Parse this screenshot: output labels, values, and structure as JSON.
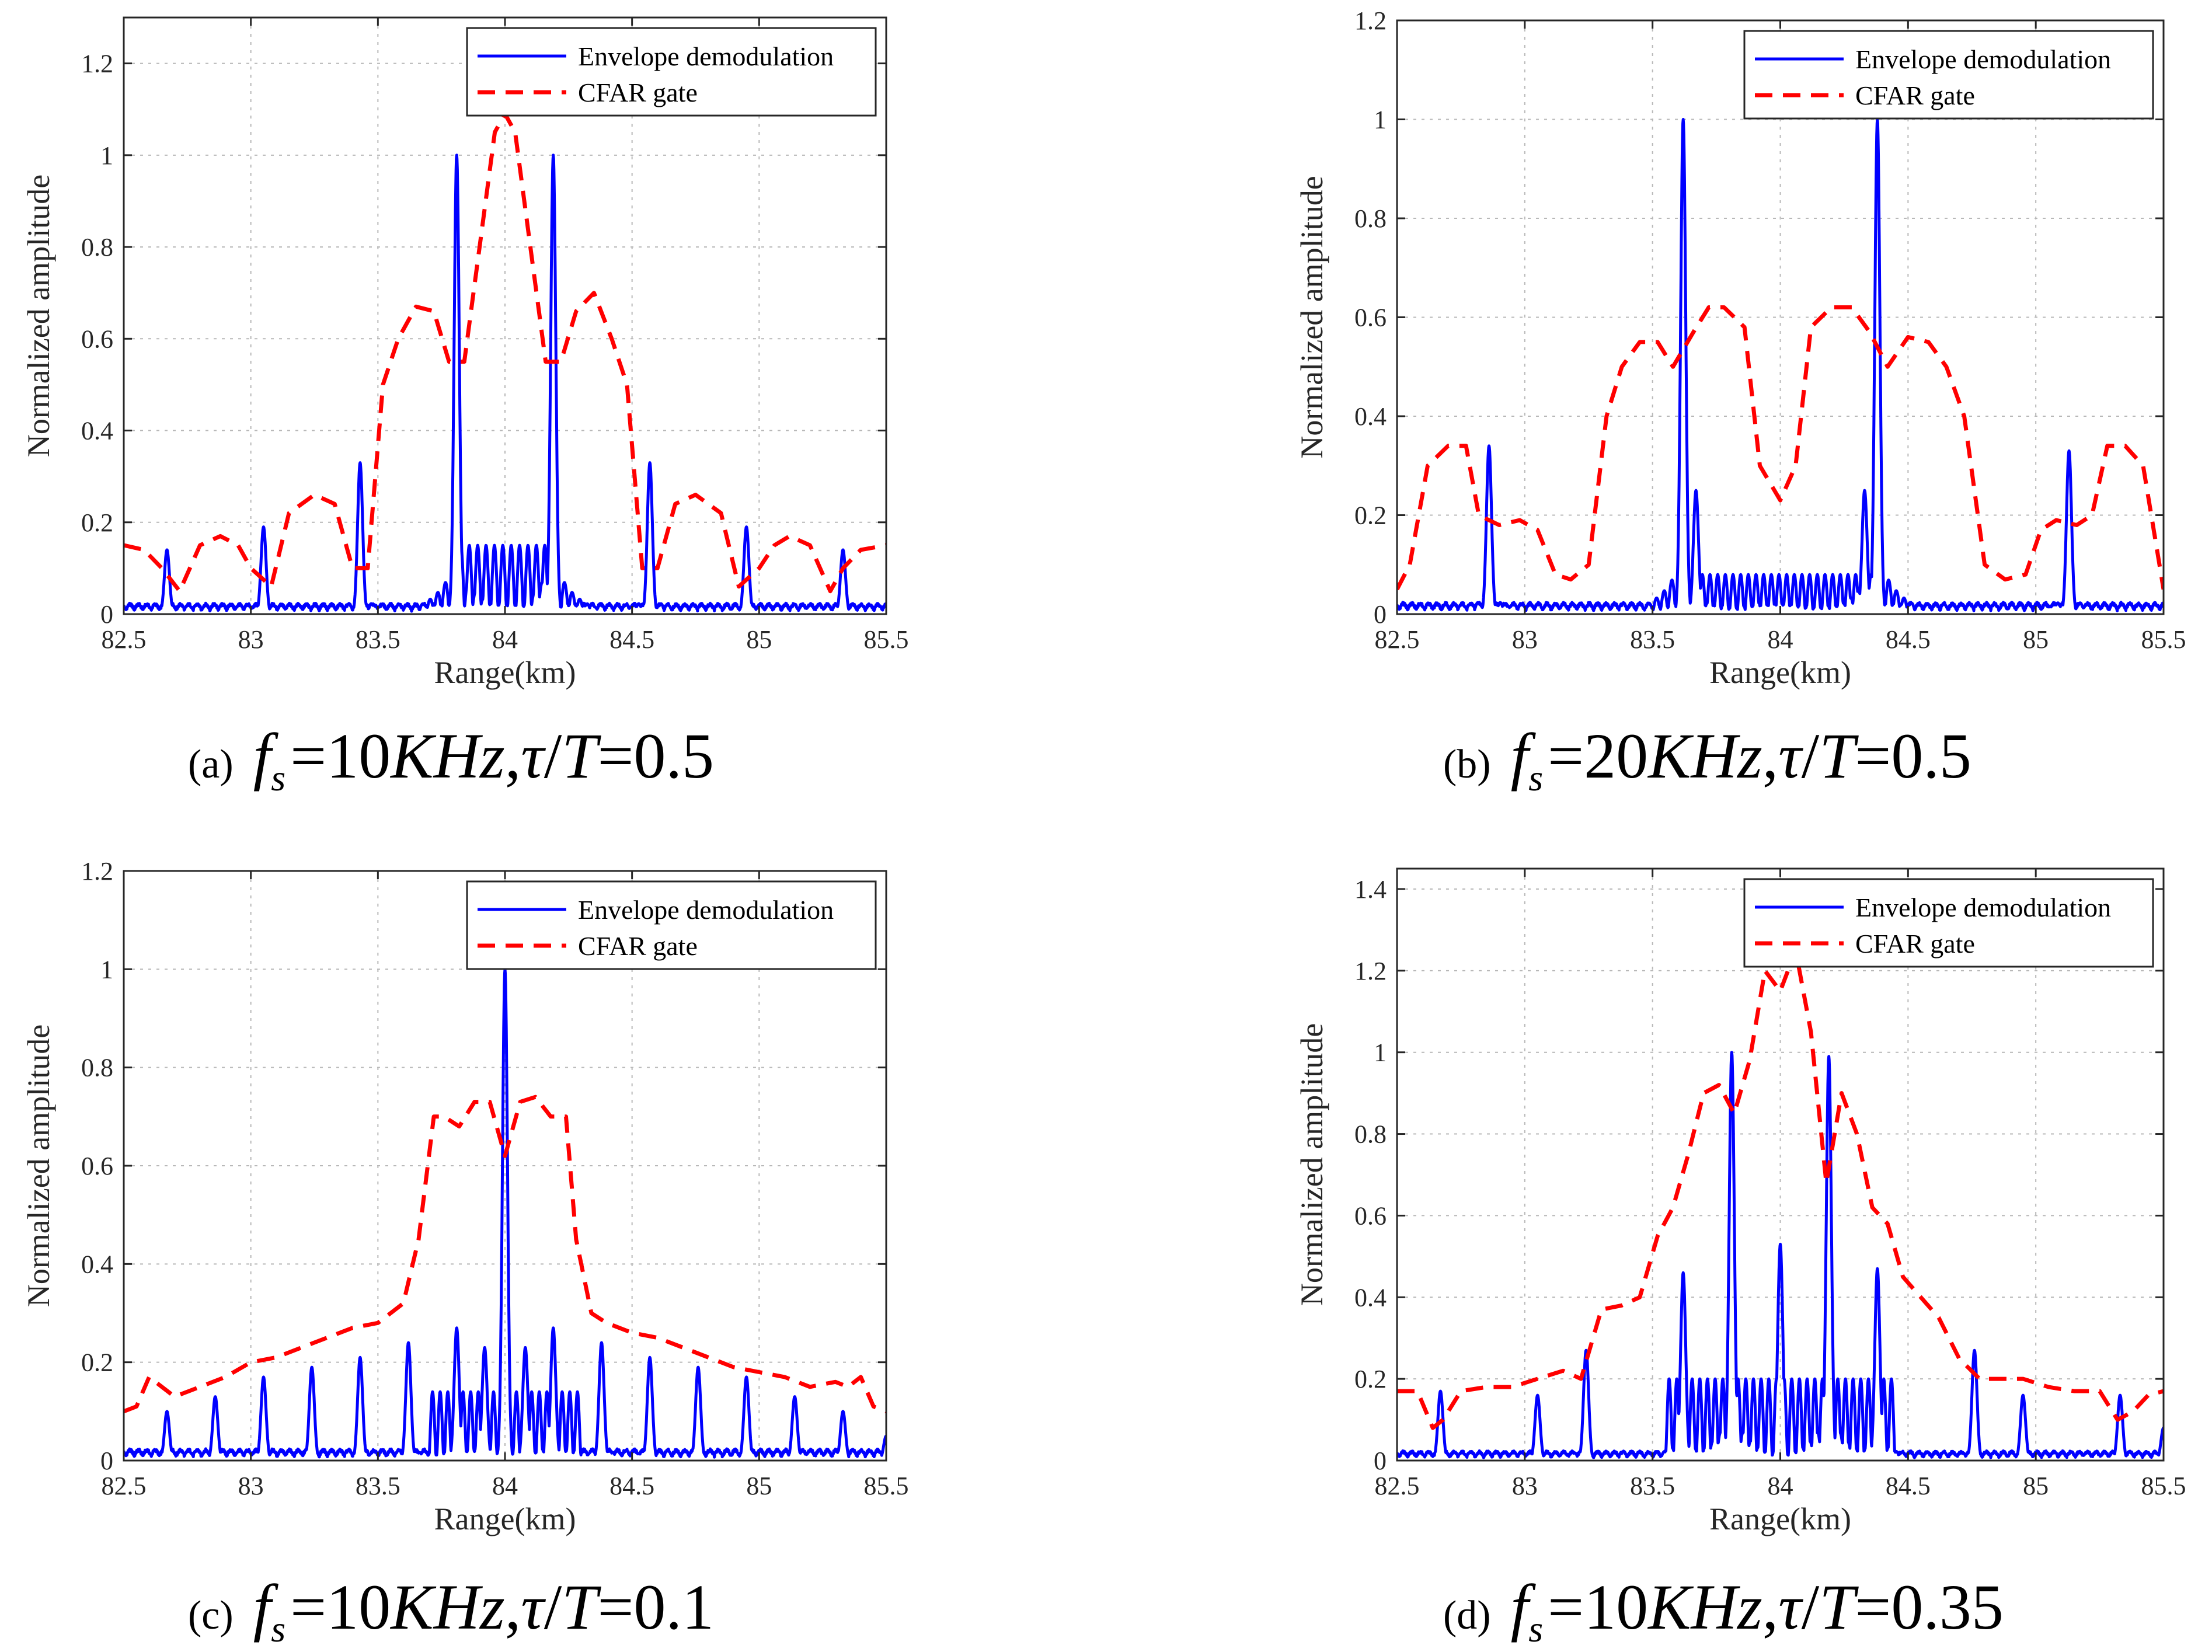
{
  "chart_data": [
    {
      "type": "line",
      "panel": "a",
      "caption": {
        "label": "(a)",
        "f": "f",
        "sub": "s",
        "eq1": "=10",
        "unit": "KHz",
        "sep": ",",
        "tau": "τ",
        "slash": "/",
        "T": "T",
        "eq2": "=0.5"
      },
      "xlabel": "Range(km)",
      "ylabel": "Normalized amplitude",
      "xlim": [
        82.5,
        85.5
      ],
      "ylim": [
        0,
        1.3
      ],
      "xticks": [
        82.5,
        83,
        83.5,
        84,
        84.5,
        85,
        85.5
      ],
      "xtick_labels": [
        "82.5",
        "83",
        "83.5",
        "84",
        "84.5",
        "85",
        "85.5"
      ],
      "yticks": [
        0,
        0.2,
        0.4,
        0.6,
        0.8,
        1,
        1.2
      ],
      "ytick_labels": [
        "0",
        "0.2",
        "0.4",
        "0.6",
        "0.8",
        "1",
        "1.2"
      ],
      "legend": {
        "position": "top-right",
        "entries": [
          "Envelope demodulation",
          "CFAR gate"
        ]
      },
      "series": [
        {
          "name": "Envelope demodulation",
          "color": "#0000ff",
          "style": "solid",
          "peaks": [
            [
              82.67,
              0.14
            ],
            [
              83.05,
              0.19
            ],
            [
              83.43,
              0.33
            ],
            [
              83.81,
              1.0
            ],
            [
              84.19,
              1.0
            ],
            [
              84.57,
              0.33
            ],
            [
              84.95,
              0.19
            ],
            [
              85.33,
              0.14
            ]
          ],
          "fill_between": [
            83.81,
            84.19
          ],
          "fill_level": 0.15,
          "fill_spacing": 0.033
        },
        {
          "name": "CFAR gate",
          "color": "#ff0000",
          "style": "dashed",
          "x": [
            82.5,
            82.58,
            82.65,
            82.72,
            82.8,
            82.88,
            82.95,
            83.0,
            83.08,
            83.15,
            83.25,
            83.33,
            83.4,
            83.46,
            83.52,
            83.58,
            83.65,
            83.72,
            83.78,
            83.84,
            83.9,
            83.96,
            84.0,
            84.04,
            84.1,
            84.16,
            84.22,
            84.28,
            84.35,
            84.42,
            84.48,
            84.54,
            84.6,
            84.67,
            84.75,
            84.85,
            84.92,
            85.0,
            85.06,
            85.12,
            85.2,
            85.28,
            85.33,
            85.4,
            85.5
          ],
          "y": [
            0.15,
            0.14,
            0.1,
            0.05,
            0.15,
            0.17,
            0.15,
            0.1,
            0.06,
            0.22,
            0.26,
            0.24,
            0.1,
            0.1,
            0.5,
            0.6,
            0.67,
            0.66,
            0.55,
            0.55,
            0.8,
            1.05,
            1.09,
            1.05,
            0.8,
            0.55,
            0.55,
            0.66,
            0.7,
            0.6,
            0.5,
            0.1,
            0.1,
            0.24,
            0.26,
            0.22,
            0.06,
            0.1,
            0.15,
            0.17,
            0.15,
            0.05,
            0.1,
            0.14,
            0.15
          ]
        }
      ]
    },
    {
      "type": "line",
      "panel": "b",
      "caption": {
        "label": "(b)",
        "f": "f",
        "sub": "s",
        "eq1": "=20",
        "unit": "KHz",
        "sep": ",",
        "tau": "τ",
        "slash": "/",
        "T": "T",
        "eq2": "=0.5"
      },
      "xlabel": "Range(km)",
      "ylabel": "Normalized amplitude",
      "xlim": [
        82.5,
        85.5
      ],
      "ylim": [
        0,
        1.2
      ],
      "xticks": [
        82.5,
        83,
        83.5,
        84,
        84.5,
        85,
        85.5
      ],
      "xtick_labels": [
        "82.5",
        "83",
        "83.5",
        "84",
        "84.5",
        "85",
        "85.5"
      ],
      "yticks": [
        0,
        0.2,
        0.4,
        0.6,
        0.8,
        1,
        1.2
      ],
      "ytick_labels": [
        "0",
        "0.2",
        "0.4",
        "0.6",
        "0.8",
        "1",
        "1.2"
      ],
      "legend": {
        "position": "top-right",
        "entries": [
          "Envelope demodulation",
          "CFAR gate"
        ]
      },
      "series": [
        {
          "name": "Envelope demodulation",
          "color": "#0000ff",
          "style": "solid",
          "peaks": [
            [
              82.86,
              0.34
            ],
            [
              83.62,
              1.0
            ],
            [
              83.67,
              0.25
            ],
            [
              84.33,
              0.25
            ],
            [
              84.38,
              1.0
            ],
            [
              85.13,
              0.33
            ]
          ],
          "fill_between": [
            83.62,
            84.38
          ],
          "fill_level": 0.08,
          "fill_spacing": 0.03
        },
        {
          "name": "CFAR gate",
          "color": "#ff0000",
          "style": "dashed",
          "x": [
            82.5,
            82.55,
            82.62,
            82.7,
            82.77,
            82.82,
            82.9,
            82.98,
            83.05,
            83.12,
            83.18,
            83.25,
            83.32,
            83.38,
            83.45,
            83.52,
            83.58,
            83.66,
            83.72,
            83.78,
            83.86,
            83.92,
            84.0,
            84.06,
            84.12,
            84.2,
            84.28,
            84.35,
            84.42,
            84.5,
            84.58,
            84.65,
            84.72,
            84.8,
            84.88,
            84.96,
            85.02,
            85.08,
            85.16,
            85.22,
            85.28,
            85.35,
            85.42,
            85.5
          ],
          "y": [
            0.05,
            0.1,
            0.3,
            0.34,
            0.34,
            0.2,
            0.18,
            0.19,
            0.17,
            0.08,
            0.07,
            0.1,
            0.4,
            0.5,
            0.55,
            0.55,
            0.5,
            0.57,
            0.62,
            0.62,
            0.58,
            0.3,
            0.23,
            0.3,
            0.58,
            0.62,
            0.62,
            0.57,
            0.5,
            0.56,
            0.55,
            0.5,
            0.4,
            0.1,
            0.07,
            0.08,
            0.17,
            0.19,
            0.18,
            0.2,
            0.34,
            0.34,
            0.3,
            0.05
          ]
        }
      ]
    },
    {
      "type": "line",
      "panel": "c",
      "caption": {
        "label": "(c)",
        "f": "f",
        "sub": "s",
        "eq1": "=10",
        "unit": "KHz",
        "sep": ",",
        "tau": "τ",
        "slash": "/",
        "T": "T",
        "eq2": "=0.1"
      },
      "xlabel": "Range(km)",
      "ylabel": "Normalized amplitude",
      "xlim": [
        82.5,
        85.5
      ],
      "ylim": [
        0,
        1.2
      ],
      "xticks": [
        82.5,
        83,
        83.5,
        84,
        84.5,
        85,
        85.5
      ],
      "xtick_labels": [
        "82.5",
        "83",
        "83.5",
        "84",
        "84.5",
        "85",
        "85.5"
      ],
      "yticks": [
        0,
        0.2,
        0.4,
        0.6,
        0.8,
        1,
        1.2
      ],
      "ytick_labels": [
        "0",
        "0.2",
        "0.4",
        "0.6",
        "0.8",
        "1",
        "1.2"
      ],
      "legend": {
        "position": "top-right",
        "entries": [
          "Envelope demodulation",
          "CFAR gate"
        ]
      },
      "series": [
        {
          "name": "Envelope demodulation",
          "color": "#0000ff",
          "style": "solid",
          "peaks": [
            [
              82.67,
              0.1
            ],
            [
              82.86,
              0.13
            ],
            [
              83.05,
              0.17
            ],
            [
              83.24,
              0.19
            ],
            [
              83.43,
              0.21
            ],
            [
              83.62,
              0.24
            ],
            [
              83.81,
              0.27
            ],
            [
              83.92,
              0.23
            ],
            [
              84.0,
              1.0
            ],
            [
              84.08,
              0.23
            ],
            [
              84.19,
              0.27
            ],
            [
              84.38,
              0.24
            ],
            [
              84.57,
              0.21
            ],
            [
              84.76,
              0.19
            ],
            [
              84.95,
              0.17
            ],
            [
              85.14,
              0.13
            ],
            [
              85.33,
              0.1
            ],
            [
              85.5,
              0.05
            ]
          ],
          "fill_between": [
            83.7,
            84.3
          ],
          "fill_level": 0.14,
          "fill_spacing": 0.03
        },
        {
          "name": "CFAR gate",
          "color": "#ff0000",
          "style": "dashed",
          "x": [
            82.5,
            82.55,
            82.6,
            82.65,
            82.7,
            82.8,
            82.9,
            83.0,
            83.1,
            83.2,
            83.3,
            83.4,
            83.5,
            83.6,
            83.66,
            83.72,
            83.76,
            83.82,
            83.88,
            83.94,
            84.0,
            84.06,
            84.12,
            84.18,
            84.24,
            84.28,
            84.34,
            84.4,
            84.5,
            84.6,
            84.7,
            84.8,
            84.9,
            85.0,
            85.1,
            85.2,
            85.3,
            85.35,
            85.4,
            85.45,
            85.5
          ],
          "y": [
            0.1,
            0.11,
            0.17,
            0.15,
            0.13,
            0.15,
            0.17,
            0.2,
            0.21,
            0.23,
            0.25,
            0.27,
            0.28,
            0.32,
            0.45,
            0.7,
            0.7,
            0.68,
            0.73,
            0.73,
            0.62,
            0.73,
            0.74,
            0.7,
            0.7,
            0.45,
            0.3,
            0.28,
            0.26,
            0.25,
            0.23,
            0.21,
            0.19,
            0.18,
            0.17,
            0.15,
            0.16,
            0.15,
            0.17,
            0.11,
            0.1
          ]
        }
      ]
    },
    {
      "type": "line",
      "panel": "d",
      "caption": {
        "label": "(d)",
        "f": "f",
        "sub": "s",
        "eq1": "=10",
        "unit": "KHz",
        "sep": ",",
        "tau": "τ",
        "slash": "/",
        "T": "T",
        "eq2": "=0.35"
      },
      "xlabel": "Range(km)",
      "ylabel": "Normalized amplitude",
      "xlim": [
        82.5,
        85.5
      ],
      "ylim": [
        0,
        1.45
      ],
      "xticks": [
        82.5,
        83,
        83.5,
        84,
        84.5,
        85,
        85.5
      ],
      "xtick_labels": [
        "82.5",
        "83",
        "83.5",
        "84",
        "84.5",
        "85",
        "85.5"
      ],
      "yticks": [
        0,
        0.2,
        0.4,
        0.6,
        0.8,
        1,
        1.2,
        1.4
      ],
      "ytick_labels": [
        "0",
        "0.2",
        "0.4",
        "0.6",
        "0.8",
        "1",
        "1.2",
        "1.4"
      ],
      "legend": {
        "position": "top-right",
        "entries": [
          "Envelope demodulation",
          "CFAR gate"
        ]
      },
      "series": [
        {
          "name": "Envelope demodulation",
          "color": "#0000ff",
          "style": "solid",
          "peaks": [
            [
              82.67,
              0.17
            ],
            [
              83.05,
              0.16
            ],
            [
              83.24,
              0.27
            ],
            [
              83.62,
              0.46
            ],
            [
              83.81,
              1.0
            ],
            [
              84.0,
              0.53
            ],
            [
              84.19,
              0.99
            ],
            [
              84.38,
              0.47
            ],
            [
              84.76,
              0.27
            ],
            [
              84.95,
              0.16
            ],
            [
              85.33,
              0.16
            ],
            [
              85.5,
              0.08
            ]
          ],
          "fill_between": [
            83.55,
            84.45
          ],
          "fill_level": 0.2,
          "fill_spacing": 0.03
        },
        {
          "name": "CFAR gate",
          "color": "#ff0000",
          "style": "dashed",
          "x": [
            82.5,
            82.58,
            82.64,
            82.68,
            82.75,
            82.85,
            82.95,
            83.05,
            83.15,
            83.22,
            83.3,
            83.38,
            83.45,
            83.52,
            83.58,
            83.64,
            83.7,
            83.76,
            83.82,
            83.88,
            83.94,
            84.0,
            84.06,
            84.12,
            84.18,
            84.24,
            84.3,
            84.36,
            84.42,
            84.48,
            84.55,
            84.62,
            84.7,
            84.78,
            84.85,
            84.95,
            85.05,
            85.15,
            85.25,
            85.32,
            85.38,
            85.44,
            85.5
          ],
          "y": [
            0.17,
            0.17,
            0.08,
            0.1,
            0.17,
            0.18,
            0.18,
            0.2,
            0.22,
            0.2,
            0.37,
            0.38,
            0.4,
            0.55,
            0.62,
            0.75,
            0.9,
            0.92,
            0.85,
            0.98,
            1.2,
            1.15,
            1.25,
            1.05,
            0.68,
            0.9,
            0.8,
            0.62,
            0.58,
            0.45,
            0.4,
            0.35,
            0.25,
            0.2,
            0.2,
            0.2,
            0.18,
            0.17,
            0.17,
            0.1,
            0.12,
            0.16,
            0.17
          ]
        }
      ]
    }
  ]
}
